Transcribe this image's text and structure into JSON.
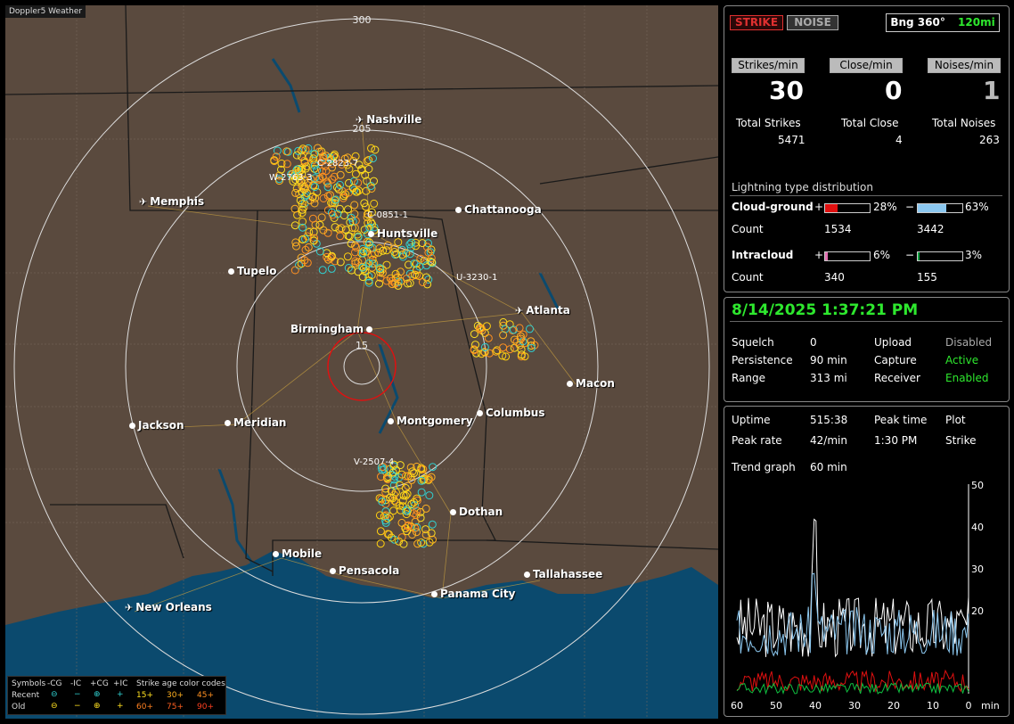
{
  "app_title": "Doppler5 Weather",
  "map": {
    "range_labels": {
      "r300": "300",
      "r205": "205",
      "r15": "15"
    },
    "storm_labels": [
      {
        "id": "c1",
        "text": "C-2823-7"
      },
      {
        "id": "c2",
        "text": "W-2763-3"
      },
      {
        "id": "c3",
        "text": "C-0851-1"
      },
      {
        "id": "c4",
        "text": "U-3230-1"
      },
      {
        "id": "c5",
        "text": "V-2507-4"
      }
    ],
    "cities": [
      {
        "name": "Nashville",
        "kind": "plane"
      },
      {
        "name": "Memphis",
        "kind": "plane"
      },
      {
        "name": "Chattanooga",
        "kind": "dot"
      },
      {
        "name": "Huntsville",
        "kind": "dot"
      },
      {
        "name": "Tupelo",
        "kind": "dot"
      },
      {
        "name": "Atlanta",
        "kind": "plane"
      },
      {
        "name": "Birmingham",
        "kind": "dot"
      },
      {
        "name": "Macon",
        "kind": "dot"
      },
      {
        "name": "Jackson",
        "kind": "dot"
      },
      {
        "name": "Meridian",
        "kind": "dot"
      },
      {
        "name": "Montgomery",
        "kind": "dot"
      },
      {
        "name": "Columbus",
        "kind": "dot"
      },
      {
        "name": "Dothan",
        "kind": "dot"
      },
      {
        "name": "Mobile",
        "kind": "dot"
      },
      {
        "name": "Pensacola",
        "kind": "dot"
      },
      {
        "name": "Tallahassee",
        "kind": "dot"
      },
      {
        "name": "Panama City",
        "kind": "dot"
      },
      {
        "name": "New Orleans",
        "kind": "plane"
      }
    ]
  },
  "legend": {
    "symbols_label": "Symbols",
    "cg_neg": "-CG",
    "ic_neg": "-IC",
    "cg_pos": "+CG",
    "ic_pos": "+IC",
    "age_label": "Strike age color codes",
    "recent": "Recent",
    "old": "Old",
    "recent_ages": [
      "15+",
      "30+",
      "45+"
    ],
    "old_ages": [
      "60+",
      "75+",
      "90+"
    ]
  },
  "stats": {
    "strike_btn": "STRIKE",
    "noise_btn": "NOISE",
    "bearing": "Bng 360°",
    "range": "120mi",
    "strikes_min_btn": "Strikes/min",
    "close_min_btn": "Close/min",
    "noises_min_btn": "Noises/min",
    "strikes_min": "30",
    "close_min": "0",
    "noises_min": "1",
    "total_strikes_label": "Total Strikes",
    "total_close_label": "Total Close",
    "total_noises_label": "Total Noises",
    "total_strikes": "5471",
    "total_close": "4",
    "total_noises": "263",
    "dist_title": "Lightning type distribution",
    "cg_label": "Cloud-ground",
    "ic_label": "Intracloud",
    "count_label": "Count",
    "plus": "+",
    "minus": "−",
    "cg_pos_pct": "28%",
    "cg_neg_pct": "63%",
    "ic_pos_pct": "6%",
    "ic_neg_pct": "3%",
    "cg_pos_count": "1534",
    "cg_neg_count": "3442",
    "ic_pos_count": "340",
    "ic_neg_count": "155",
    "cg_pos_frac": 0.28,
    "cg_neg_frac": 0.63,
    "ic_pos_frac": 0.06,
    "ic_neg_frac": 0.03
  },
  "status": {
    "datetime": "8/14/2025 1:37:21 PM",
    "squelch_label": "Squelch",
    "squelch": "0",
    "upload_label": "Upload",
    "upload": "Disabled",
    "persistence_label": "Persistence",
    "persistence": "90 min",
    "capture_label": "Capture",
    "capture": "Active",
    "range_label": "Range",
    "range": "313 mi",
    "receiver_label": "Receiver",
    "receiver": "Enabled"
  },
  "trend": {
    "uptime_label": "Uptime",
    "uptime": "515:38",
    "peak_time_label": "Peak time",
    "peak_time": "1:30 PM",
    "plot_label": "Plot",
    "plot": "Strike",
    "peak_rate_label": "Peak rate",
    "peak_rate": "42/min",
    "trend_label": "Trend graph",
    "trend_window": "60 min",
    "y_ticks": [
      "50",
      "40",
      "30",
      "20"
    ],
    "x_ticks": [
      "60",
      "50",
      "40",
      "30",
      "20",
      "10",
      "0"
    ],
    "x_unit": "min"
  },
  "colors": {
    "map_bg": "#5a4a3e",
    "water": "#0b4a6e",
    "cg_pos_bar": "#e01010",
    "cg_neg_bar": "#8cc8f0",
    "ic_pos_bar": "#e070b0",
    "ic_neg_bar": "#10a040",
    "accent_green": "#2ee82e"
  }
}
